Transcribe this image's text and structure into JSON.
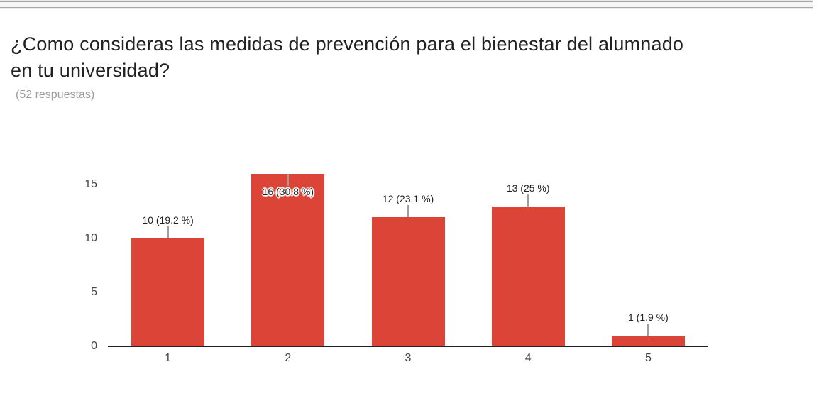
{
  "header": {
    "title": "¿Como consideras las medidas de prevención para el bienestar del alumnado en tu universidad?",
    "title_lines": [
      "¿Como consideras las medidas de prevención para el bienestar del alumnado",
      "en tu universidad?"
    ],
    "responses": "(52 respuestas)"
  },
  "chart_data": {
    "type": "bar",
    "title": "¿Como consideras las medidas de prevención para el bienestar del alumnado en tu universidad?",
    "subtitle": "(52 respuestas)",
    "total_responses": 52,
    "categories": [
      "1",
      "2",
      "3",
      "4",
      "5"
    ],
    "values": [
      10,
      16,
      12,
      13,
      1
    ],
    "percentages": [
      19.2,
      30.8,
      23.1,
      25,
      1.9
    ],
    "annotations": [
      "10 (19.2 %)",
      "16 (30.8 %)",
      "12 (23.1 %)",
      "13 (25 %)",
      "1 (1.9 %)"
    ],
    "xlabel": "",
    "ylabel": "",
    "y_ticks": [
      0,
      5,
      10,
      15
    ],
    "ylim": [
      0,
      16
    ],
    "grid": false,
    "legend": "none",
    "colors": {
      "bar": "#db4437",
      "axis": "#212121",
      "tick_label": "#444444",
      "annotation": "#212121",
      "stem": "#9e9e9e"
    }
  }
}
